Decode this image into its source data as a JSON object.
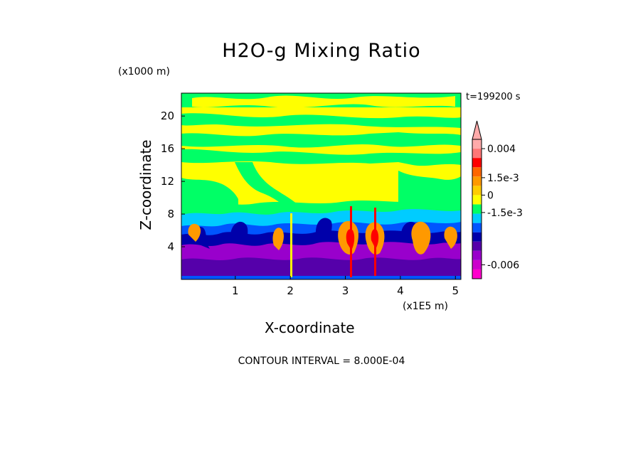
{
  "chart_data": {
    "type": "heatmap",
    "title": "H2O-g Mixing Ratio",
    "xlabel": "X-coordinate",
    "ylabel": "Z-coordinate",
    "x_unit_label": "(x1E5 m)",
    "y_unit_label": "(x1000 m)",
    "time_label": "t=199200 s",
    "contour_interval_label": "CONTOUR INTERVAL = 8.000E-04",
    "xlim": [
      0.02,
      5.1
    ],
    "ylim": [
      0,
      22.8
    ],
    "x_ticks": [
      1,
      2,
      3,
      4,
      5
    ],
    "x_tick_labels": [
      "1",
      "2",
      "3",
      "4",
      "5"
    ],
    "y_ticks": [
      4,
      8,
      12,
      16,
      20
    ],
    "y_tick_labels": [
      "4",
      "8",
      "12",
      "16",
      "20"
    ],
    "colorbar": {
      "levels": [
        -0.0072,
        -0.0064,
        -0.0056,
        -0.0048,
        -0.004,
        -0.0032,
        -0.0024,
        -0.0016,
        -0.0008,
        0,
        0.0008,
        0.0016,
        0.0024,
        0.0032,
        0.004,
        0.0048
      ],
      "colors": [
        "#ff00cc",
        "#cc00cc",
        "#9900cc",
        "#5500aa",
        "#0000aa",
        "#0055ff",
        "#00ccff",
        "#00ff66",
        "#ffff00",
        "#ffcc00",
        "#ff9900",
        "#ff6600",
        "#ff0000",
        "#ff7777",
        "#ffaaaa"
      ],
      "tick_values": [
        0.004,
        0.0015,
        0,
        -0.0015,
        -0.006
      ],
      "tick_labels": [
        "0.004",
        "1.5e-3",
        "0",
        "-1.5e-3",
        "-0.006"
      ]
    },
    "approximate_layers": [
      {
        "z_range": [
          0,
          2
        ],
        "dominant_value_range": [
          -0.0072,
          -0.0056
        ],
        "description_color": "purple"
      },
      {
        "z_range": [
          2,
          5
        ],
        "dominant_value_range": [
          -0.0048,
          -0.0024
        ],
        "description_color": "dark blue / purple with orange plumes"
      },
      {
        "z_range": [
          5,
          9
        ],
        "dominant_value_range": [
          -0.0016,
          0
        ],
        "description_color": "cyan / green"
      },
      {
        "z_range": [
          9,
          20
        ],
        "dominant_value_range": [
          0,
          0.0008
        ],
        "description_color": "yellow with green"
      },
      {
        "z_range": [
          20,
          22.8
        ],
        "dominant_value_range": [
          -0.0008,
          0.0008
        ],
        "description_color": "green / yellow"
      }
    ]
  }
}
